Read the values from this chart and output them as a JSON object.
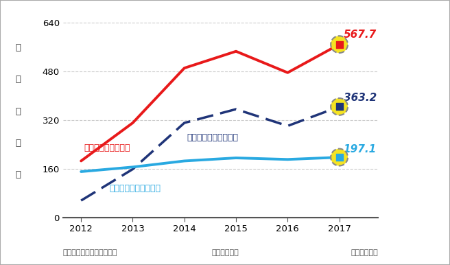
{
  "years": [
    2012,
    2013,
    2014,
    2015,
    2016,
    2017
  ],
  "cathay_financial": [
    185,
    310,
    490,
    545,
    475,
    567.7
  ],
  "cathay_life": [
    55,
    158,
    310,
    355,
    300,
    363.2
  ],
  "cathay_united_bank": [
    150,
    165,
    185,
    195,
    190,
    197.1
  ],
  "red_color": "#e8191a",
  "navy_color": "#1f3478",
  "cyan_color": "#29a9e1",
  "yellow_marker": "#f5e322",
  "yticks": [
    0,
    160,
    320,
    480,
    640
  ],
  "ylim": [
    0,
    670
  ],
  "xlim": [
    2011.65,
    2017.75
  ],
  "title_financial": "國泰金累計稅後獲利",
  "title_life": "國泰人壽累計稅後獲利",
  "title_bank": "國泰世華累計稅後獲利",
  "ylabel_chars": [
    "單",
    "位",
    "：",
    "億",
    "元"
  ],
  "label_financial_val": "567.7",
  "label_life_val": "363.2",
  "label_bank_val": "197.1",
  "footnote_left": "資料來源：國泰金控自結數",
  "footnote_mid": "整理：彭汞䯞",
  "footnote_right": "繪圖：王英嵐",
  "bg_color": "#ffffff",
  "grid_color": "#cccccc",
  "border_color": "#aaaaaa"
}
